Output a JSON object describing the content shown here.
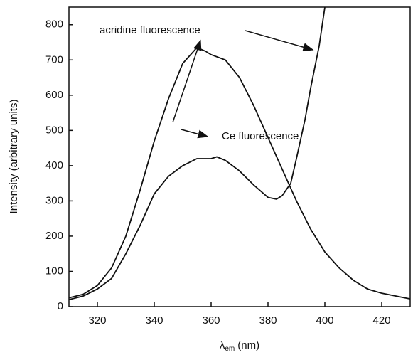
{
  "chart_data": {
    "type": "line",
    "xlabel": {
      "symbol": "λ",
      "subscript": "em",
      "unit": "(nm)"
    },
    "ylabel": "Intensity (arbitrary units)",
    "annotations": [
      "acridine fluorescence",
      "Ce fluorescence"
    ],
    "xlim": [
      310,
      430
    ],
    "ylim": [
      0,
      850
    ],
    "xticks": [
      320,
      340,
      360,
      380,
      400,
      420
    ],
    "yticks": [
      0,
      100,
      200,
      300,
      400,
      500,
      600,
      700,
      800
    ],
    "grid": false,
    "series": [
      {
        "color": "#111111",
        "x": [
          310,
          315,
          320,
          325,
          330,
          335,
          340,
          345,
          350,
          355,
          358,
          360,
          365,
          370,
          375,
          380,
          385,
          390,
          395,
          400,
          405,
          410,
          415,
          420,
          425,
          430
        ],
        "values": [
          25,
          35,
          60,
          110,
          200,
          330,
          470,
          590,
          690,
          735,
          725,
          715,
          700,
          650,
          570,
          480,
          390,
          300,
          220,
          155,
          110,
          75,
          50,
          38,
          30,
          22
        ]
      },
      {
        "color": "#111111",
        "x": [
          310,
          315,
          320,
          325,
          330,
          335,
          340,
          345,
          350,
          355,
          360,
          362,
          365,
          370,
          375,
          380,
          383,
          385,
          388,
          390,
          393,
          395,
          398,
          400
        ],
        "values": [
          20,
          30,
          50,
          80,
          150,
          230,
          320,
          370,
          400,
          420,
          420,
          425,
          415,
          385,
          345,
          310,
          305,
          315,
          350,
          420,
          530,
          620,
          740,
          850
        ]
      }
    ]
  }
}
